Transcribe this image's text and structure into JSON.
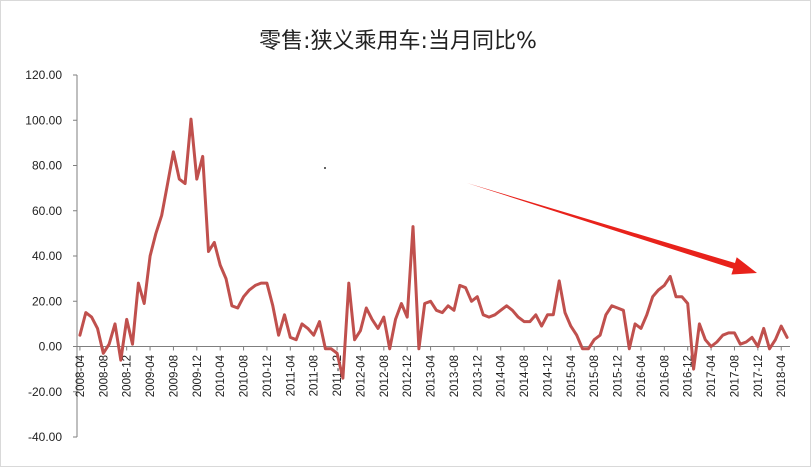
{
  "chart_data": {
    "type": "line",
    "title": "零售:狭义乘用车:当月同比%",
    "xlabel": "",
    "ylabel": "",
    "ylim": [
      -40,
      120
    ],
    "yticks": [
      "120.00",
      "100.00",
      "80.00",
      "60.00",
      "40.00",
      "20.00",
      "0.00",
      "-20.00",
      "-40.00"
    ],
    "x_start": "2008-04",
    "x_tick_labels": [
      "2008-04",
      "2008-08",
      "2008-12",
      "2009-04",
      "2009-08",
      "2009-12",
      "2010-04",
      "2010-08",
      "2010-12",
      "2011-04",
      "2011-08",
      "2011-12",
      "2012-04",
      "2012-08",
      "2012-12",
      "2013-04",
      "2013-08",
      "2013-12",
      "2014-04",
      "2014-08",
      "2014-12",
      "2015-04",
      "2015-08",
      "2015-12",
      "2016-04",
      "2016-08",
      "2016-12",
      "2017-04",
      "2017-08",
      "2017-12",
      "2018-04"
    ],
    "grid": false,
    "legend": "none",
    "line_color": "#c0504d",
    "arrow_color": "#e8221b",
    "series": [
      {
        "values": [
          5,
          15,
          13,
          8,
          -3,
          1,
          10,
          -6,
          12,
          1,
          28,
          19,
          40,
          50,
          58,
          72,
          86,
          74,
          72,
          100.5,
          74,
          84,
          42,
          46,
          36,
          30,
          18,
          17,
          22,
          25,
          27,
          28,
          28,
          18,
          5,
          14,
          4,
          3,
          10,
          8,
          5,
          11,
          -1,
          -1,
          -3,
          -14,
          28,
          3,
          7,
          17,
          12,
          8,
          13,
          -1,
          12,
          19,
          13,
          53,
          -1,
          19,
          20,
          16,
          15,
          18,
          16,
          27,
          26,
          20,
          22,
          14,
          13,
          14,
          16,
          18,
          16,
          13,
          11,
          11,
          14,
          9,
          14,
          14,
          29,
          15,
          9,
          5,
          -1,
          -1,
          3,
          5,
          14,
          18,
          17,
          16,
          -1,
          10,
          8,
          14,
          22,
          25,
          27,
          31,
          22,
          22,
          19,
          -10,
          10,
          3,
          0,
          2,
          5,
          6,
          6,
          1,
          2,
          4,
          0,
          8,
          -1,
          3,
          9,
          4
        ]
      }
    ]
  }
}
